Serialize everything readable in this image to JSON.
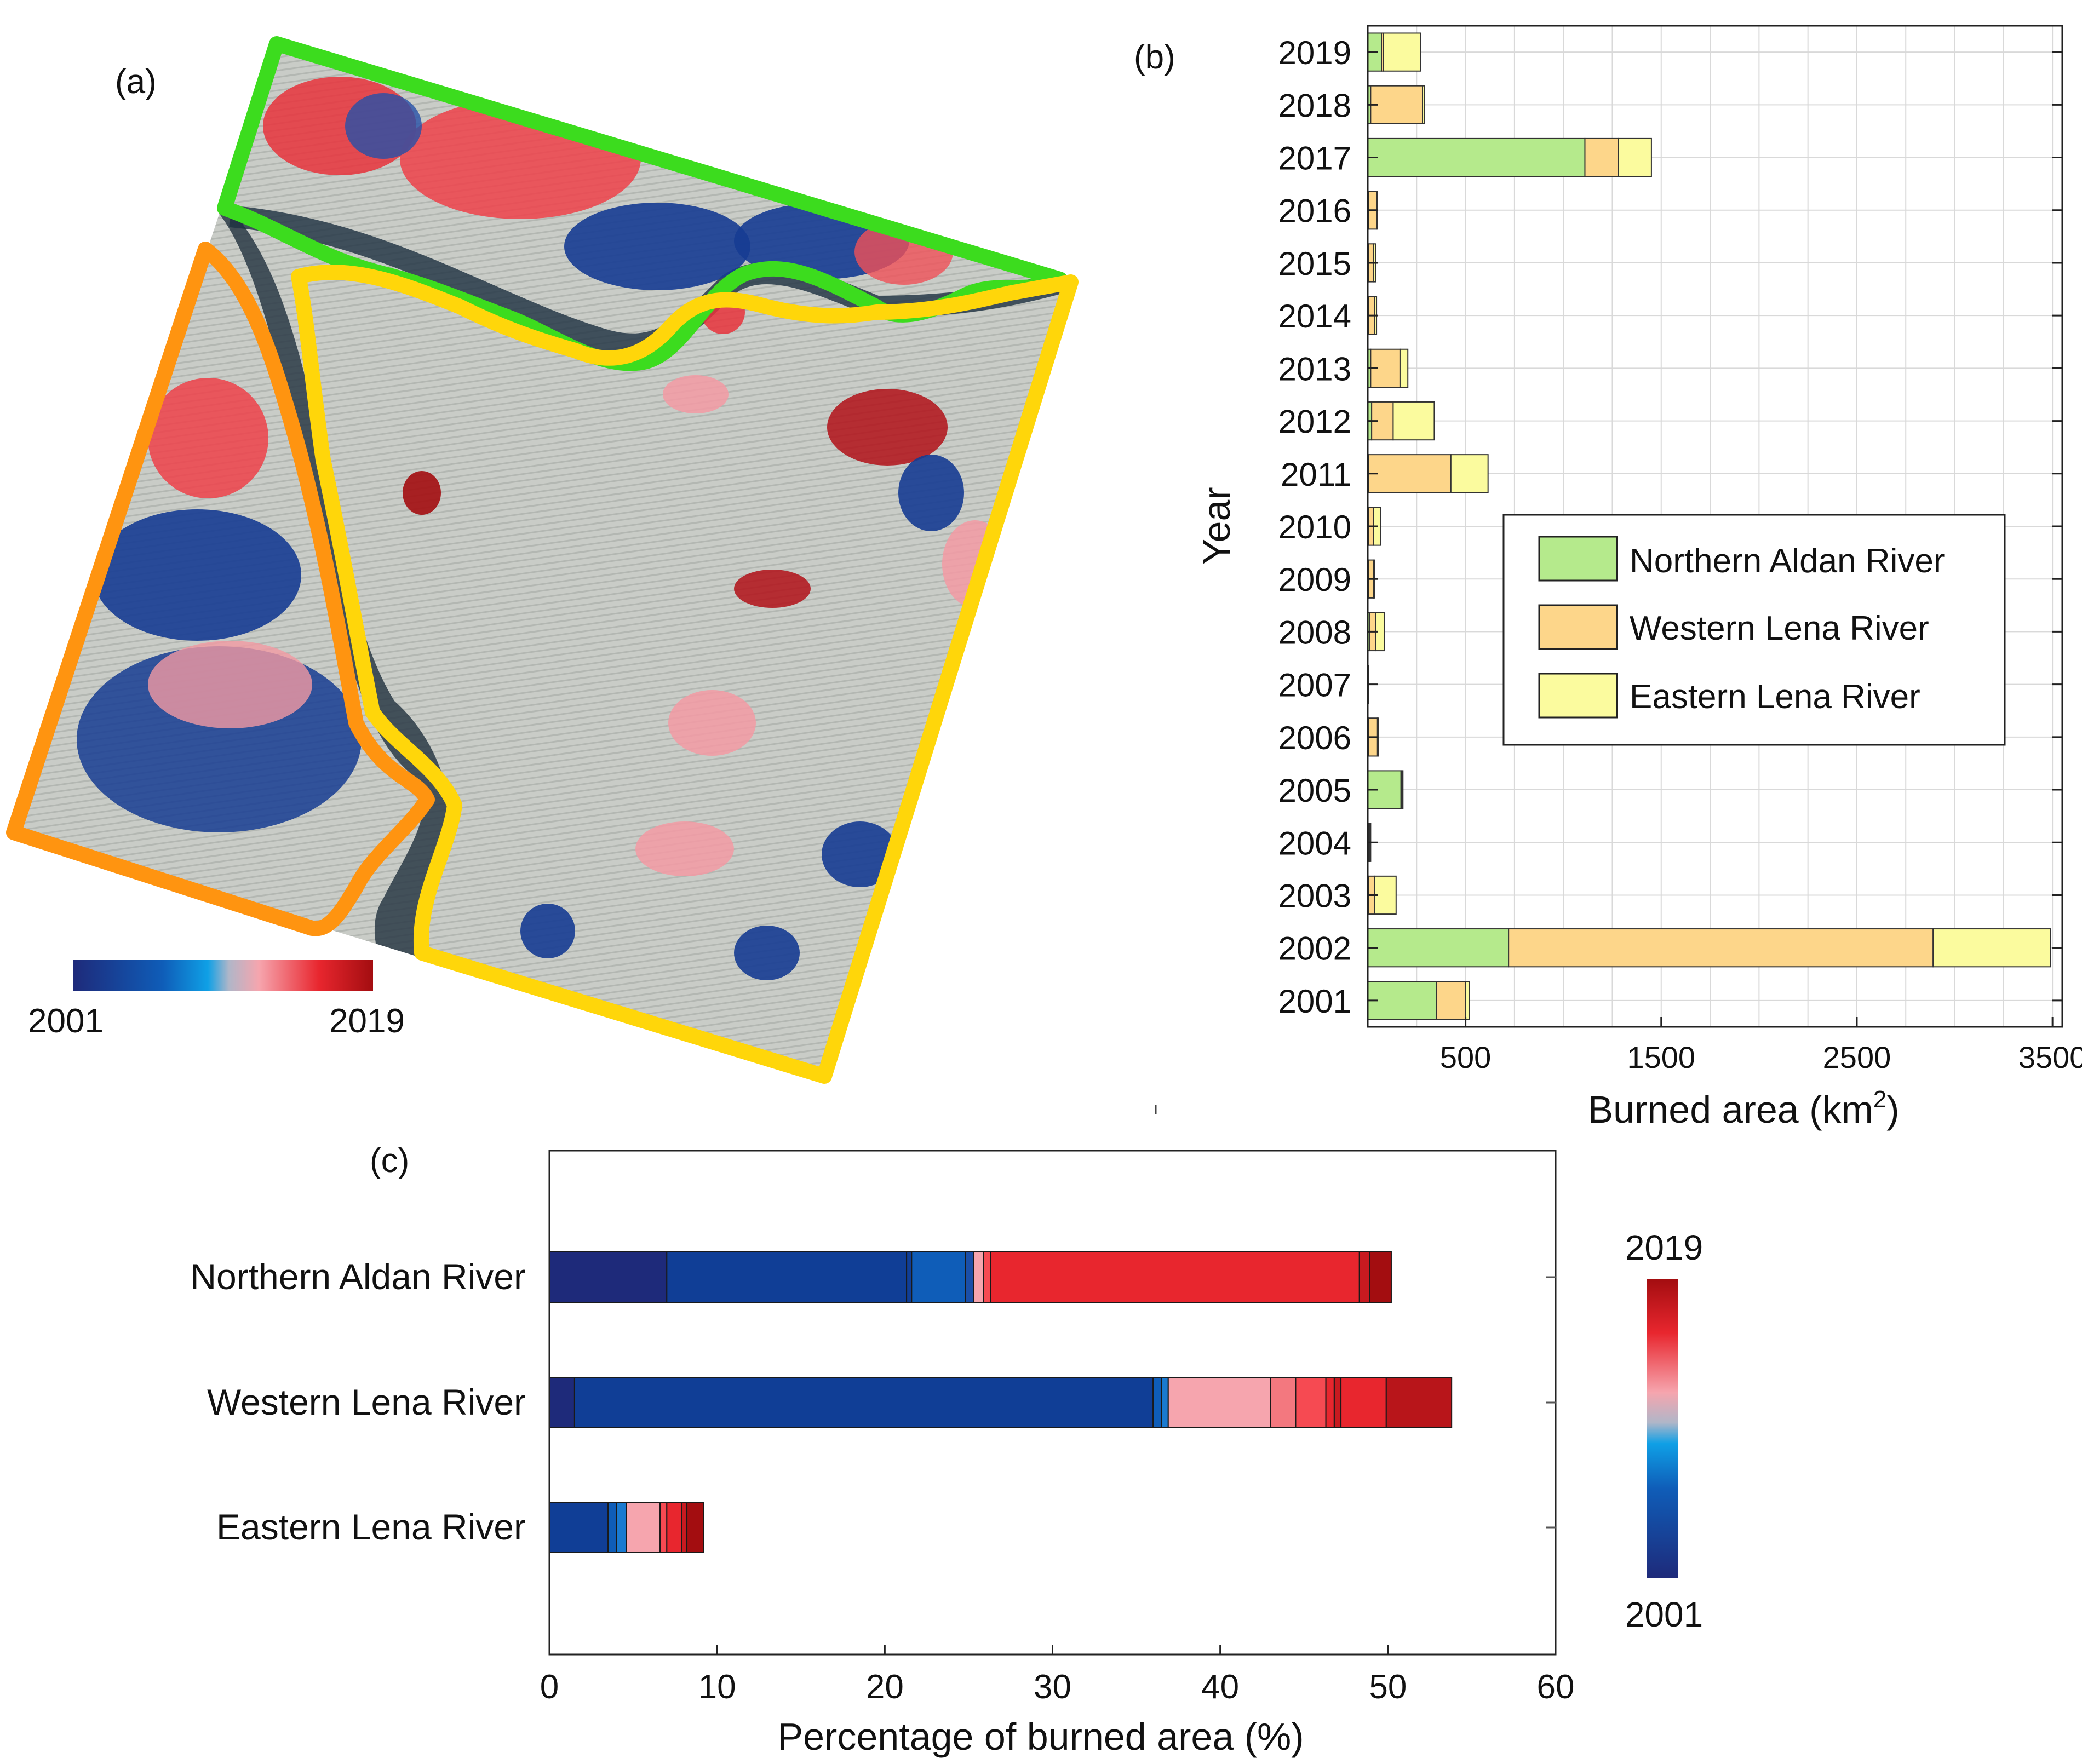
{
  "panel_labels": {
    "a": "(a)",
    "b": "(b)",
    "c": "(c)"
  },
  "colors": {
    "northern": "#b5ea8c",
    "western": "#fdd68a",
    "eastern": "#fbfb9e",
    "outline_northern": "#3cdc1e",
    "outline_western": "#ff9410",
    "outline_eastern": "#ffd60a",
    "grid": "#d9d9d9",
    "ramp": [
      "#1e2a7a",
      "#103e96",
      "#0f5db8",
      "#0fa0e6",
      "#b0b6c8",
      "#f6a5ae",
      "#f64a52",
      "#e8262e",
      "#a30d10"
    ]
  },
  "map": {
    "colorbar_start": "2001",
    "colorbar_end": "2019"
  },
  "chart_data": [
    {
      "type": "bar",
      "orientation": "horizontal",
      "stacked": true,
      "panel": "(b)",
      "categories": [
        "2001",
        "2002",
        "2003",
        "2004",
        "2005",
        "2006",
        "2007",
        "2008",
        "2009",
        "2010",
        "2011",
        "2012",
        "2013",
        "2014",
        "2015",
        "2016",
        "2017",
        "2018",
        "2019"
      ],
      "series": [
        {
          "name": "Northern Aldan River",
          "values": [
            350,
            720,
            5,
            5,
            170,
            5,
            0,
            10,
            5,
            5,
            5,
            20,
            15,
            5,
            5,
            5,
            1110,
            15,
            70
          ]
        },
        {
          "name": "Western Lena River",
          "values": [
            150,
            2170,
            30,
            5,
            5,
            45,
            5,
            30,
            25,
            25,
            420,
            110,
            150,
            30,
            25,
            40,
            170,
            265,
            10
          ]
        },
        {
          "name": "Eastern Lena River",
          "values": [
            20,
            600,
            110,
            5,
            5,
            5,
            0,
            45,
            5,
            35,
            190,
            210,
            40,
            10,
            10,
            5,
            170,
            10,
            190
          ]
        }
      ],
      "xlabel": "Burned area (km",
      "xlabel_sup": "2",
      "xlabel_end": ")",
      "ylabel": "Year",
      "xlim": [
        0,
        3550
      ],
      "xticks": [
        500,
        1500,
        2500,
        3500
      ],
      "grid": true,
      "legend_position": "middle-right"
    },
    {
      "type": "bar",
      "orientation": "horizontal",
      "stacked": true,
      "panel": "(c)",
      "categories": [
        "Northern Aldan River",
        "Western Lena River",
        "Eastern Lena River"
      ],
      "segments": [
        [
          {
            "end": 7.0,
            "color": "#1e2a7a"
          },
          {
            "end": 21.3,
            "color": "#103e96"
          },
          {
            "end": 21.6,
            "color": "#103e96"
          },
          {
            "end": 24.8,
            "color": "#0f5db8"
          },
          {
            "end": 25.3,
            "color": "#1a4fa8"
          },
          {
            "end": 25.9,
            "color": "#f6a5ae"
          },
          {
            "end": 26.3,
            "color": "#f64a52"
          },
          {
            "end": 48.3,
            "color": "#e8262e"
          },
          {
            "end": 48.9,
            "color": "#c81a20"
          },
          {
            "end": 50.2,
            "color": "#a30d10"
          }
        ],
        [
          {
            "end": 1.5,
            "color": "#1e2a7a"
          },
          {
            "end": 36.0,
            "color": "#103e96"
          },
          {
            "end": 36.5,
            "color": "#0f5db8"
          },
          {
            "end": 36.9,
            "color": "#1a7ad0"
          },
          {
            "end": 43.0,
            "color": "#f6a5ae"
          },
          {
            "end": 44.5,
            "color": "#f3787f"
          },
          {
            "end": 46.3,
            "color": "#f64a52"
          },
          {
            "end": 46.8,
            "color": "#e8262e"
          },
          {
            "end": 47.2,
            "color": "#c81a20"
          },
          {
            "end": 49.9,
            "color": "#e8262e"
          },
          {
            "end": 53.8,
            "color": "#b8151a"
          }
        ],
        [
          {
            "end": 3.5,
            "color": "#103e96"
          },
          {
            "end": 4.0,
            "color": "#0f5db8"
          },
          {
            "end": 4.6,
            "color": "#1a7ad0"
          },
          {
            "end": 6.6,
            "color": "#f6a5ae"
          },
          {
            "end": 7.0,
            "color": "#f64a52"
          },
          {
            "end": 7.9,
            "color": "#e8262e"
          },
          {
            "end": 8.2,
            "color": "#c81a20"
          },
          {
            "end": 9.2,
            "color": "#a30d10"
          }
        ]
      ],
      "xlabel": "Percentage of burned area (%)",
      "xlim": [
        0,
        60
      ],
      "xticks": [
        0,
        10,
        20,
        30,
        40,
        50,
        60
      ],
      "colorbar_top": "2019",
      "colorbar_bottom": "2001"
    }
  ]
}
